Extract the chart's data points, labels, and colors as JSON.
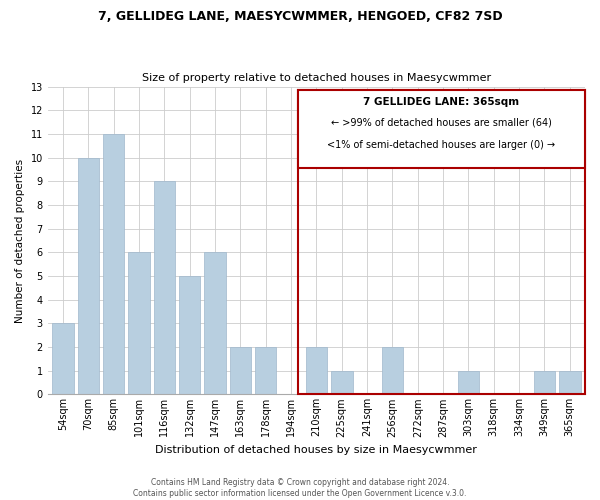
{
  "title": "7, GELLIDEG LANE, MAESYCWMMER, HENGOED, CF82 7SD",
  "subtitle": "Size of property relative to detached houses in Maesycwmmer",
  "xlabel": "Distribution of detached houses by size in Maesycwmmer",
  "ylabel": "Number of detached properties",
  "bar_labels": [
    "54sqm",
    "70sqm",
    "85sqm",
    "101sqm",
    "116sqm",
    "132sqm",
    "147sqm",
    "163sqm",
    "178sqm",
    "194sqm",
    "210sqm",
    "225sqm",
    "241sqm",
    "256sqm",
    "272sqm",
    "287sqm",
    "303sqm",
    "318sqm",
    "334sqm",
    "349sqm",
    "365sqm"
  ],
  "bar_values": [
    3,
    10,
    11,
    6,
    9,
    5,
    6,
    2,
    2,
    0,
    2,
    1,
    0,
    2,
    0,
    0,
    1,
    0,
    0,
    1,
    1
  ],
  "bar_color": "#b8cfe0",
  "ylim": [
    0,
    13
  ],
  "yticks": [
    0,
    1,
    2,
    3,
    4,
    5,
    6,
    7,
    8,
    9,
    10,
    11,
    12,
    13
  ],
  "legend_title": "7 GELLIDEG LANE: 365sqm",
  "legend_line1": "← >99% of detached houses are smaller (64)",
  "legend_line2": "<1% of semi-detached houses are larger (0) →",
  "footer_line1": "Contains HM Land Registry data © Crown copyright and database right 2024.",
  "footer_line2": "Contains public sector information licensed under the Open Government Licence v.3.0.",
  "grid_color": "#cccccc",
  "box_edge_color": "#aa0000",
  "background_color": "#ffffff",
  "title_fontsize": 9,
  "subtitle_fontsize": 8,
  "xlabel_fontsize": 8,
  "ylabel_fontsize": 7.5,
  "tick_fontsize": 7,
  "legend_title_fontsize": 7.5,
  "legend_text_fontsize": 7,
  "footer_fontsize": 5.5
}
